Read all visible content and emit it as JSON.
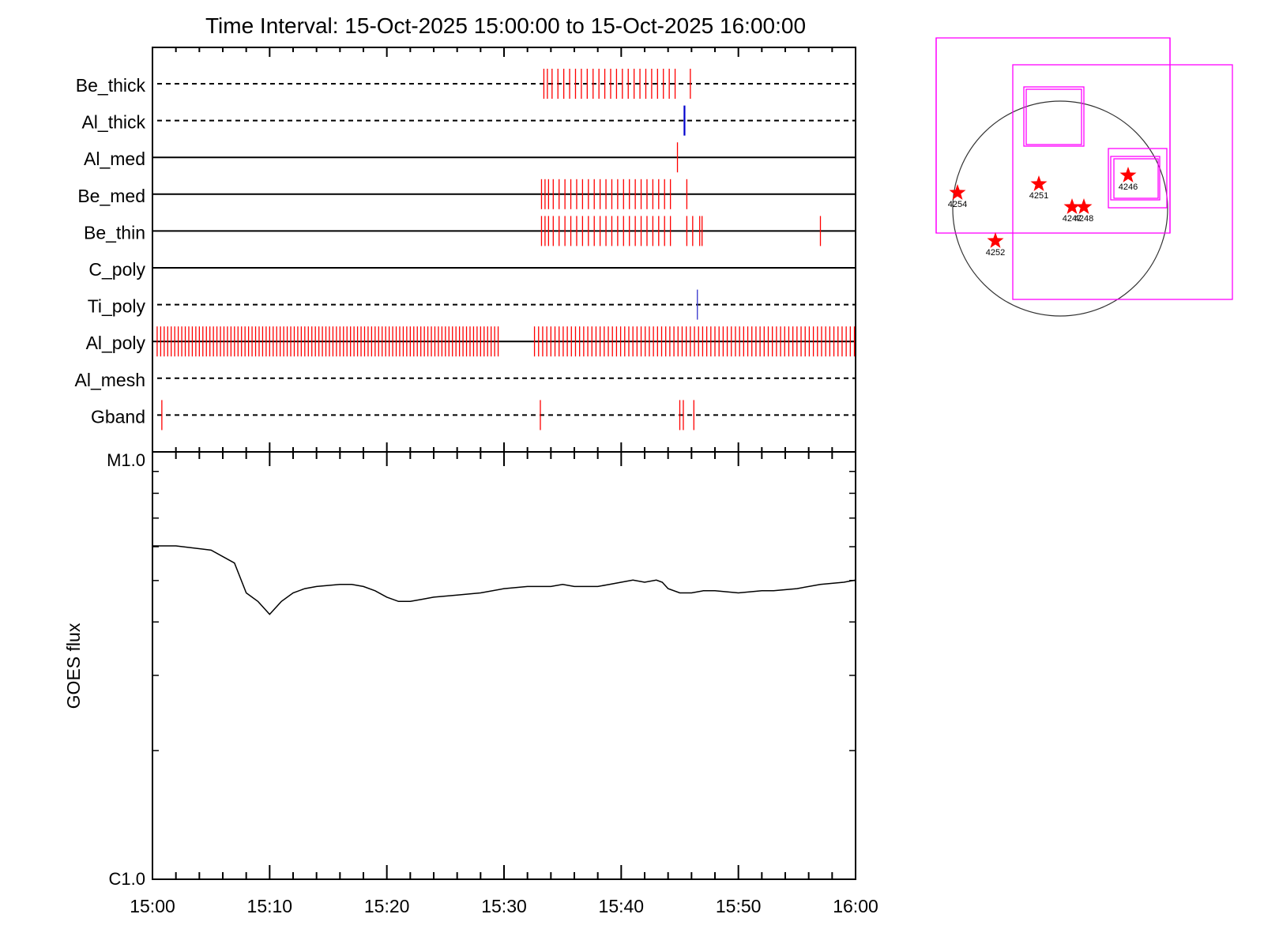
{
  "title": "Time Interval: 15-Oct-2025 15:00:00 to 15-Oct-2025 16:00:00",
  "chart_data": [
    {
      "type": "event-timeline",
      "x_range": [
        "15:00",
        "16:00"
      ],
      "filters": [
        {
          "label": "Be_thick",
          "line": "dashed",
          "events": [
            {
              "color": "#ff0000",
              "min": [
                33.4,
                33.7,
                34.1,
                34.6,
                35.1,
                35.6,
                36.1,
                36.6,
                37.1,
                37.6,
                38.1,
                38.6,
                39.1,
                39.6,
                40.1,
                40.6,
                41.1,
                41.6,
                42.1,
                42.6,
                43.1,
                43.6,
                44.1,
                44.6,
                45.9
              ]
            }
          ]
        },
        {
          "label": "Al_thick",
          "line": "dashed",
          "events": [
            {
              "color": "#0000cc",
              "min": [
                45.4
              ]
            }
          ]
        },
        {
          "label": "Al_med",
          "line": "solid",
          "events": [
            {
              "color": "#ff0000",
              "min": [
                44.8
              ]
            }
          ]
        },
        {
          "label": "Be_med",
          "line": "solid",
          "events": [
            {
              "color": "#ff0000",
              "min": [
                33.2,
                33.5,
                33.8,
                34.2,
                34.7,
                35.2,
                35.7,
                36.2,
                36.7,
                37.2,
                37.7,
                38.2,
                38.7,
                39.2,
                39.7,
                40.2,
                40.7,
                41.2,
                41.7,
                42.2,
                42.7,
                43.2,
                43.7,
                44.2,
                45.6
              ]
            }
          ]
        },
        {
          "label": "Be_thin",
          "line": "solid",
          "events": [
            {
              "color": "#ff0000",
              "min": [
                33.2,
                33.5,
                33.8,
                34.2,
                34.7,
                35.2,
                35.7,
                36.2,
                36.7,
                37.2,
                37.7,
                38.2,
                38.7,
                39.2,
                39.7,
                40.2,
                40.7,
                41.2,
                41.7,
                42.2,
                42.7,
                43.2,
                43.7,
                44.2,
                45.6,
                46.1,
                46.7,
                46.9,
                57.0
              ]
            }
          ]
        },
        {
          "label": "C_poly",
          "line": "solid",
          "events": []
        },
        {
          "label": "Ti_poly",
          "line": "dashed",
          "events": [
            {
              "color": "#3333cc",
              "min": [
                46.5
              ]
            }
          ]
        },
        {
          "label": "Al_poly",
          "line": "solid",
          "events": [
            {
              "color": "#ff0000",
              "groups": [
                {
                  "from": 0.4,
                  "to": 29.6,
                  "step": 0.3
                },
                {
                  "from": 32.6,
                  "to": 59.9,
                  "step": 0.35
                }
              ]
            }
          ]
        },
        {
          "label": "Al_mesh",
          "line": "dashed",
          "events": []
        },
        {
          "label": "Gband",
          "line": "dashed",
          "events": [
            {
              "color": "#ff0000",
              "min": [
                0.8,
                33.1,
                45.0,
                45.3,
                46.2
              ]
            }
          ]
        }
      ]
    },
    {
      "type": "line",
      "xlabel": "",
      "ylabel": "GOES flux",
      "y_scale": "log",
      "ylim": [
        "C1.0",
        "M1.0"
      ],
      "ytick_labels": [
        "M1.0",
        "C1.0"
      ],
      "xticks": [
        "15:00",
        "15:10",
        "15:20",
        "15:30",
        "15:40",
        "15:50",
        "16:00"
      ],
      "series": [
        {
          "color": "#000000",
          "x_min": [
            0,
            2,
            5,
            7,
            8,
            9,
            10,
            11,
            12,
            13,
            14,
            16,
            17,
            18,
            19,
            20,
            21,
            22,
            23,
            24,
            26,
            28,
            30,
            32,
            34,
            35,
            36,
            37,
            38,
            39,
            40,
            41,
            42,
            43,
            43.5,
            44,
            45,
            46,
            47,
            48,
            50,
            52,
            53,
            55,
            57,
            59,
            60
          ],
          "y_fraction_of_log_range": [
            0.78,
            0.78,
            0.77,
            0.74,
            0.67,
            0.65,
            0.62,
            0.65,
            0.67,
            0.68,
            0.685,
            0.69,
            0.69,
            0.685,
            0.675,
            0.66,
            0.65,
            0.65,
            0.655,
            0.66,
            0.665,
            0.67,
            0.68,
            0.685,
            0.685,
            0.69,
            0.685,
            0.685,
            0.685,
            0.69,
            0.695,
            0.7,
            0.695,
            0.7,
            0.695,
            0.68,
            0.67,
            0.67,
            0.675,
            0.675,
            0.67,
            0.675,
            0.675,
            0.68,
            0.69,
            0.695,
            0.7
          ]
        }
      ]
    },
    {
      "type": "map",
      "markers": [
        {
          "label": "4254",
          "color": "#ff0000"
        },
        {
          "label": "4251",
          "color": "#ff0000"
        },
        {
          "label": "4246",
          "color": "#ff0000"
        },
        {
          "label": "4252",
          "color": "#ff0000"
        },
        {
          "label": "4247",
          "color": "#ff0000"
        },
        {
          "label": "4248",
          "color": "#ff0000"
        }
      ],
      "box_color": "#ff00ff"
    }
  ]
}
